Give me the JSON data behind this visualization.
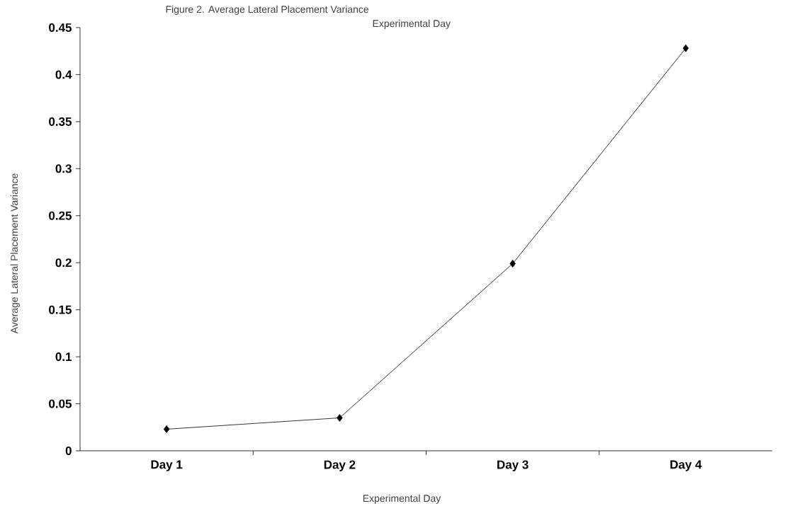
{
  "chart_data": {
    "type": "line",
    "title": "Figure 2.  Average Lateral Placement Variance",
    "subtitle": "Experimental Day",
    "xlabel": "Experimental Day",
    "ylabel": "Average Lateral Placement Variance",
    "categories": [
      "Day 1",
      "Day 2",
      "Day 3",
      "Day 4"
    ],
    "values": [
      0.023,
      0.035,
      0.199,
      0.428
    ],
    "color": "#000000",
    "marker": "diamond",
    "line_style": "solid",
    "ylim": [
      0,
      0.45
    ],
    "yticks": [
      0,
      0.05,
      0.1,
      0.15,
      0.2,
      0.25,
      0.3,
      0.35,
      0.4,
      0.45
    ],
    "grid": false
  }
}
